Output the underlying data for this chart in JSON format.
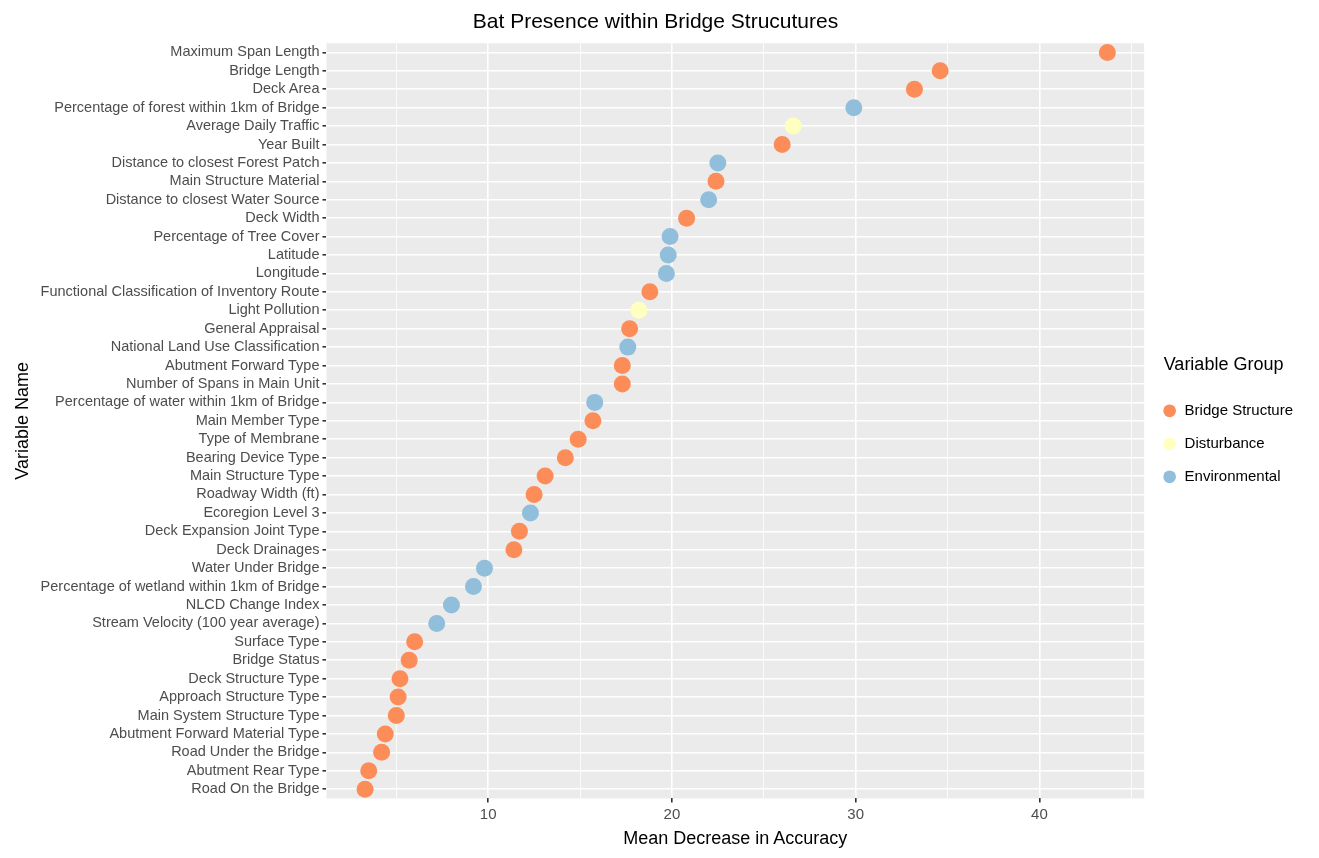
{
  "chart_data": {
    "type": "scatter",
    "title": "Bat Presence within Bridge Strucutures",
    "xlabel": "Mean Decrease in Accuracy",
    "ylabel": "Variable Name",
    "legend_title": "Variable Group",
    "orientation": "horizontal",
    "marker": "circle",
    "grid": true,
    "legend": "right",
    "categories": [
      "Maximum Span Length",
      "Bridge Length",
      "Deck Area",
      "Percentage of forest within 1km of Bridge",
      "Average Daily Traffic",
      "Year Built",
      "Distance to closest Forest Patch",
      "Main Structure Material",
      "Distance to closest Water Source",
      "Deck Width",
      "Percentage of Tree Cover",
      "Latitude",
      "Longitude",
      "Functional Classification of Inventory Route",
      "Light Pollution",
      "General Appraisal",
      "National Land Use Classification",
      "Abutment Forward Type",
      "Number of Spans in Main Unit",
      "Percentage of water within 1km of Bridge",
      "Main Member Type",
      "Type of Membrane",
      "Bearing Device Type",
      "Main Structure Type",
      "Roadway Width (ft)",
      "Ecoregion Level 3",
      "Deck Expansion Joint Type",
      "Deck Drainages",
      "Water Under Bridge",
      "Percentage of wetland within 1km of Bridge",
      "NLCD Change Index",
      "Stream Velocity (100 year average)",
      "Surface Type",
      "Bridge Status",
      "Deck Structure Type",
      "Approach Structure Type",
      "Main System Structure Type",
      "Abutment Forward Material Type",
      "Road Under the Bridge",
      "Abutment Rear Type",
      "Road On the Bridge"
    ],
    "series": [
      {
        "name": "Bridge Structure",
        "color": "#fc8d59",
        "values": [
          43.7,
          34.6,
          33.2,
          null,
          null,
          26.0,
          null,
          22.4,
          null,
          20.8,
          null,
          null,
          null,
          18.8,
          null,
          17.7,
          null,
          17.3,
          17.3,
          null,
          15.7,
          14.9,
          14.2,
          13.1,
          12.5,
          null,
          11.7,
          11.4,
          null,
          null,
          null,
          null,
          6.0,
          5.7,
          5.2,
          5.1,
          5.0,
          4.4,
          4.2,
          3.5,
          3.3
        ]
      },
      {
        "name": "Disturbance",
        "color": "#ffffbf",
        "values": [
          null,
          null,
          null,
          null,
          26.6,
          null,
          null,
          null,
          null,
          null,
          null,
          null,
          null,
          null,
          18.2,
          null,
          null,
          null,
          null,
          null,
          null,
          null,
          null,
          null,
          null,
          null,
          null,
          null,
          null,
          null,
          null,
          null,
          null,
          null,
          null,
          null,
          null,
          null,
          null,
          null,
          null
        ]
      },
      {
        "name": "Environmental",
        "color": "#91bfdb",
        "values": [
          null,
          null,
          null,
          29.9,
          null,
          null,
          22.5,
          null,
          22.0,
          null,
          19.9,
          19.8,
          19.7,
          null,
          null,
          null,
          17.6,
          null,
          null,
          15.8,
          null,
          null,
          null,
          null,
          null,
          12.3,
          null,
          null,
          9.8,
          9.2,
          8.0,
          7.2,
          null,
          null,
          null,
          null,
          null,
          null,
          null,
          null,
          null
        ]
      }
    ],
    "xlim": [
      1.2,
      45.7
    ],
    "xticks": [
      {
        "value": 5,
        "label": null
      },
      10,
      {
        "value": 15,
        "label": null
      },
      20,
      {
        "value": 25,
        "label": null
      },
      30,
      {
        "value": 35,
        "label": null
      },
      40,
      {
        "value": 45,
        "label": null
      }
    ]
  }
}
